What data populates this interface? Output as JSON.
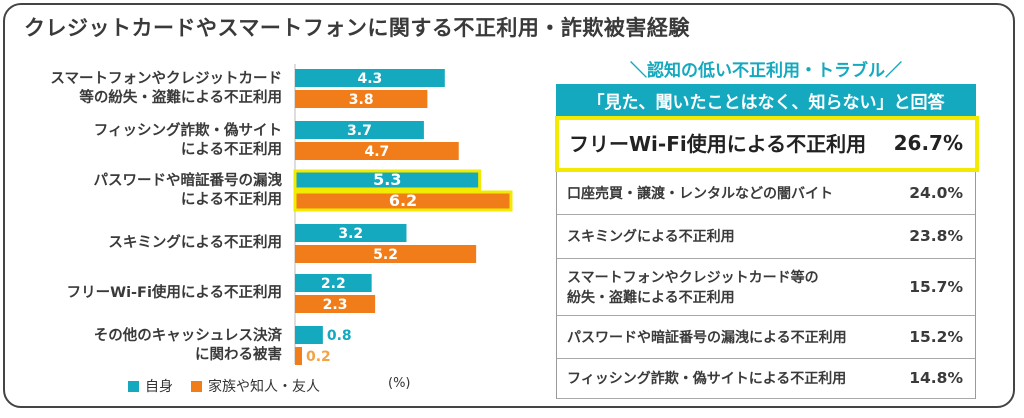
{
  "title": "クレジットカードやスマートフォンに関する不正利用・詐欺被害経験",
  "colors": {
    "self": "#14a9be",
    "family": "#f07d1a",
    "highlight": "#f2ea00",
    "header_bg": "#14a9be",
    "small_family_value": "#f2a343"
  },
  "chart_data": {
    "type": "bar",
    "orientation": "horizontal",
    "unit": "(%)",
    "categories": [
      "スマートフォンやクレジットカード\n等の紛失・盗難による不正利用",
      "フィッシング詐欺・偽サイト\nによる不正利用",
      "パスワードや暗証番号の漏洩\nによる不正利用",
      "スキミングによる不正利用",
      "フリーWi-Fi使用による不正利用",
      "その他のキャッシュレス決済\nに関わる被害"
    ],
    "series": [
      {
        "name": "自身",
        "values": [
          4.3,
          3.7,
          5.3,
          3.2,
          2.2,
          0.8
        ]
      },
      {
        "name": "家族や知人・友人",
        "values": [
          3.8,
          4.7,
          6.2,
          5.2,
          2.3,
          0.2
        ]
      }
    ],
    "highlighted_category_index": 2,
    "xlim": [
      0,
      6.2
    ],
    "legend": [
      "自身",
      "家族や知人・友人"
    ]
  },
  "right_panel": {
    "caption": "＼認知の低い不正利用・トラブル／",
    "header": "「見た、聞いたことはなく、知らない」と回答",
    "rows": [
      {
        "label": "フリーWi-Fi使用による不正利用",
        "value": "26.7%"
      },
      {
        "label": "口座売買・譲渡・レンタルなどの闇バイト",
        "value": "24.0%"
      },
      {
        "label": "スキミングによる不正利用",
        "value": "23.8%"
      },
      {
        "label": "スマートフォンやクレジットカード等の\n紛失・盗難による不正利用",
        "value": "15.7%"
      },
      {
        "label": "パスワードや暗証番号の漏洩による不正利用",
        "value": "15.2%"
      },
      {
        "label": "フィッシング詐欺・偽サイトによる不正利用",
        "value": "14.8%"
      }
    ]
  }
}
